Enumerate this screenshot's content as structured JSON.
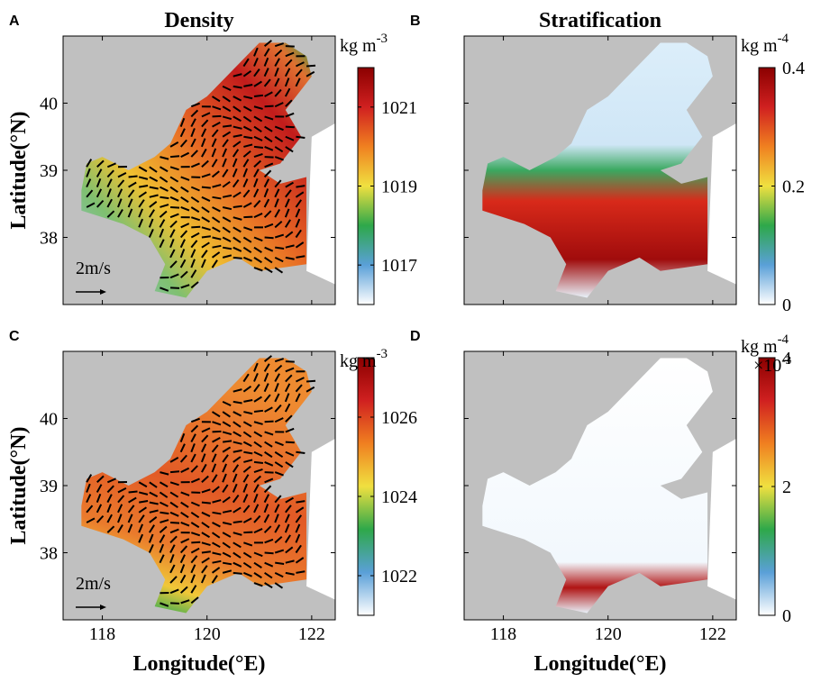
{
  "chart_data": [
    {
      "type": "map",
      "panel": "A",
      "title": "Density",
      "ylabel": "Latitude(°N)",
      "scale_label": "2m/s",
      "xlim": [
        117.25,
        122.45
      ],
      "ylim": [
        37.0,
        41.0
      ],
      "xticks": [
        118,
        120,
        122
      ],
      "yticks": [
        38,
        39,
        40
      ],
      "colorbar": {
        "unit": "kg m",
        "unit_exp": "-3",
        "lim": [
          1016,
          1022
        ],
        "ticks": [
          1017,
          1019,
          1021
        ],
        "colors": [
          "#ffffff",
          "#5aa0d8",
          "#2ea84a",
          "#f0e040",
          "#f08020",
          "#d02020",
          "#8b0000"
        ]
      }
    },
    {
      "type": "map",
      "panel": "B",
      "title": "Stratification",
      "xlim": [
        117.25,
        122.45
      ],
      "ylim": [
        37.0,
        41.0
      ],
      "xticks": [
        118,
        120,
        122
      ],
      "yticks": [
        38,
        39,
        40
      ],
      "colorbar": {
        "unit": "kg m",
        "unit_exp": "-4",
        "lim": [
          0,
          0.4
        ],
        "ticks": [
          0,
          0.2,
          0.4
        ],
        "colors": [
          "#ffffff",
          "#5aa0d8",
          "#2ea84a",
          "#f0e040",
          "#f08020",
          "#d02020",
          "#8b0000"
        ]
      }
    },
    {
      "type": "map",
      "panel": "C",
      "ylabel": "Latitude(°N)",
      "xlabel": "Longitude(°E)",
      "scale_label": "2m/s",
      "xlim": [
        117.25,
        122.45
      ],
      "ylim": [
        37.0,
        41.0
      ],
      "xticks": [
        118,
        120,
        122
      ],
      "yticks": [
        38,
        39,
        40
      ],
      "colorbar": {
        "unit": "kg m",
        "unit_exp": "-3",
        "lim": [
          1021,
          1027.5
        ],
        "ticks": [
          1022,
          1024,
          1026
        ],
        "colors": [
          "#ffffff",
          "#5aa0d8",
          "#2ea84a",
          "#f0e040",
          "#f08020",
          "#d02020",
          "#8b0000"
        ]
      }
    },
    {
      "type": "map",
      "panel": "D",
      "xlabel": "Longitude(°E)",
      "xlim": [
        117.25,
        122.45
      ],
      "ylim": [
        37.0,
        41.0
      ],
      "xticks": [
        118,
        120,
        122
      ],
      "yticks": [
        38,
        39,
        40
      ],
      "colorbar": {
        "unit": "kg m",
        "unit_exp": "-4",
        "multiplier": "×10",
        "multiplier_exp": "-3",
        "lim": [
          0,
          4
        ],
        "ticks": [
          0,
          2,
          4
        ],
        "colors": [
          "#ffffff",
          "#5aa0d8",
          "#2ea84a",
          "#f0e040",
          "#f08020",
          "#d02020",
          "#8b0000"
        ]
      }
    }
  ]
}
